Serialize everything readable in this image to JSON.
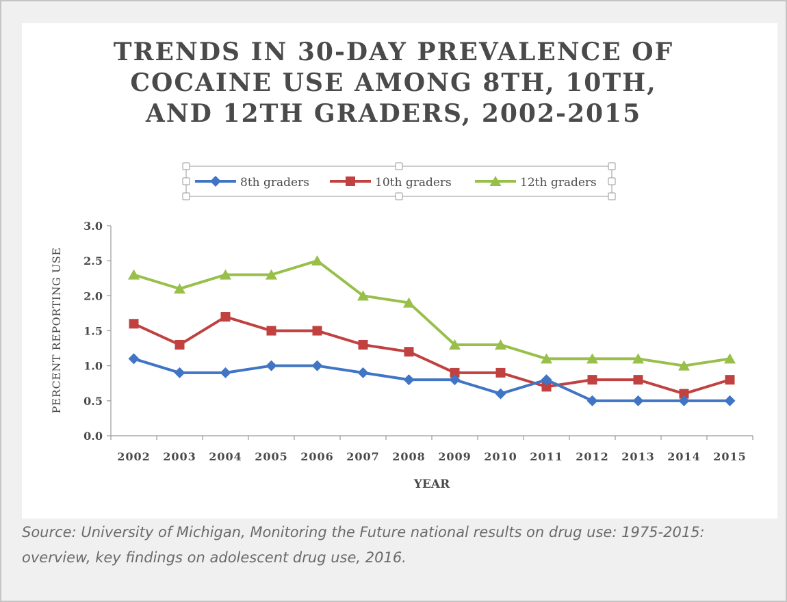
{
  "chart_data": {
    "type": "line",
    "title_lines": [
      "TRENDS IN 30-DAY PREVALENCE OF",
      "COCAINE USE AMONG 8TH, 10TH,",
      "AND 12TH GRADERS, 2002-2015"
    ],
    "xlabel": "YEAR",
    "ylabel": "PERCENT REPORTING USE",
    "categories": [
      "2002",
      "2003",
      "2004",
      "2005",
      "2006",
      "2007",
      "2008",
      "2009",
      "2010",
      "2011",
      "2012",
      "2013",
      "2014",
      "2015"
    ],
    "ylim": [
      0,
      3
    ],
    "yticks": [
      "0.0",
      "0.5",
      "1.0",
      "1.5",
      "2.0",
      "2.5",
      "3.0"
    ],
    "grid": false,
    "legend_placement": "top",
    "series": [
      {
        "name": "8th graders",
        "color": "#3f75c4",
        "marker": "diamond",
        "values": [
          1.1,
          0.9,
          0.9,
          1.0,
          1.0,
          0.9,
          0.8,
          0.8,
          0.6,
          0.8,
          0.5,
          0.5,
          0.5,
          0.5
        ]
      },
      {
        "name": "10th graders",
        "color": "#c0413f",
        "marker": "square",
        "values": [
          1.6,
          1.3,
          1.7,
          1.5,
          1.5,
          1.3,
          1.2,
          0.9,
          0.9,
          0.7,
          0.8,
          0.8,
          0.6,
          0.8
        ]
      },
      {
        "name": "12th graders",
        "color": "#98bf4a",
        "marker": "triangle",
        "values": [
          2.3,
          2.1,
          2.3,
          2.3,
          2.5,
          2.0,
          1.9,
          1.3,
          1.3,
          1.1,
          1.1,
          1.1,
          1.0,
          1.1
        ]
      }
    ]
  },
  "source_text": "Source: University of Michigan, Monitoring the Future national results on drug use: 1975-2015: overview, key findings on adolescent drug use, 2016."
}
